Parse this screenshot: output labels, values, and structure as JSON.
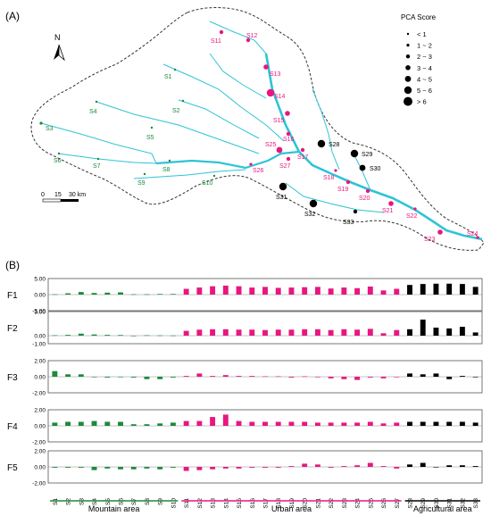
{
  "panel_a": {
    "label": "(A)",
    "north": "N",
    "scale_labels": [
      "0",
      "15",
      "30 km"
    ],
    "legend": {
      "title": "PCA Score",
      "items": [
        "< 1",
        "1 ~ 2",
        "2 ~ 3",
        "3 ~ 4",
        "4 ~ 5",
        "5 ~ 6",
        "> 6"
      ]
    },
    "colors": {
      "mountain": "#1a8a3c",
      "urban": "#e8177f",
      "agricultural": "#000000",
      "river": "#2ec4d6",
      "boundary": "#333333"
    },
    "sites": [
      {
        "id": "S1",
        "group": "mountain",
        "class": 1
      },
      {
        "id": "S2",
        "group": "mountain",
        "class": 1
      },
      {
        "id": "S3",
        "group": "mountain",
        "class": 2
      },
      {
        "id": "S4",
        "group": "mountain",
        "class": 1
      },
      {
        "id": "S5",
        "group": "mountain",
        "class": 1
      },
      {
        "id": "S6",
        "group": "mountain",
        "class": 1
      },
      {
        "id": "S7",
        "group": "mountain",
        "class": 1
      },
      {
        "id": "S8",
        "group": "mountain",
        "class": 1
      },
      {
        "id": "S9",
        "group": "mountain",
        "class": 1
      },
      {
        "id": "S10",
        "group": "mountain",
        "class": 1
      },
      {
        "id": "S11",
        "group": "urban",
        "class": 3
      },
      {
        "id": "S12",
        "group": "urban",
        "class": 3
      },
      {
        "id": "S13",
        "group": "urban",
        "class": 4
      },
      {
        "id": "S14",
        "group": "urban",
        "class": 6
      },
      {
        "id": "S15",
        "group": "urban",
        "class": 4
      },
      {
        "id": "S16",
        "group": "urban",
        "class": 3
      },
      {
        "id": "S17",
        "group": "urban",
        "class": 3
      },
      {
        "id": "S18",
        "group": "urban",
        "class": 2
      },
      {
        "id": "S19",
        "group": "urban",
        "class": 3
      },
      {
        "id": "S20",
        "group": "urban",
        "class": 3
      },
      {
        "id": "S21",
        "group": "urban",
        "class": 4
      },
      {
        "id": "S22",
        "group": "urban",
        "class": 2
      },
      {
        "id": "S23",
        "group": "urban",
        "class": 4
      },
      {
        "id": "S24",
        "group": "urban",
        "class": 2
      },
      {
        "id": "S25",
        "group": "urban",
        "class": 5
      },
      {
        "id": "S26",
        "group": "urban",
        "class": 2
      },
      {
        "id": "S27",
        "group": "urban",
        "class": 3
      },
      {
        "id": "S28",
        "group": "agricultural",
        "class": 6
      },
      {
        "id": "S29",
        "group": "agricultural",
        "class": 6
      },
      {
        "id": "S30",
        "group": "agricultural",
        "class": 5
      },
      {
        "id": "S31",
        "group": "agricultural",
        "class": 6
      },
      {
        "id": "S32",
        "group": "agricultural",
        "class": 6
      },
      {
        "id": "S33",
        "group": "agricultural",
        "class": 3
      }
    ]
  },
  "panel_b": {
    "label": "(B)",
    "chart_data": {
      "type": "bar",
      "categories": [
        "S1",
        "S2",
        "S3",
        "S4",
        "S5",
        "S6",
        "S7",
        "S8",
        "S9",
        "S10",
        "S11",
        "S12",
        "S13",
        "S14",
        "S15",
        "S16",
        "S17",
        "S18",
        "S19",
        "S20",
        "S21",
        "S22",
        "S23",
        "S24",
        "S25",
        "S26",
        "S27",
        "S28",
        "S29",
        "S30",
        "S31",
        "S32",
        "S33"
      ],
      "groups": [
        {
          "name": "Mountain area",
          "color": "#1a8a3c",
          "from": 0,
          "to": 9
        },
        {
          "name": "Urban area",
          "color": "#e8177f",
          "from": 10,
          "to": 26
        },
        {
          "name": "Agricultural area",
          "color": "#000000",
          "from": 27,
          "to": 32
        }
      ],
      "panels": [
        {
          "name": "F1",
          "ylim": [
            -5,
            5
          ],
          "ticks": [
            "5.00",
            "0.00",
            "-5.00"
          ],
          "values": [
            0.1,
            0.4,
            0.8,
            0.5,
            0.6,
            0.7,
            0.1,
            0.1,
            0.2,
            0.2,
            1.8,
            2.2,
            2.6,
            2.8,
            2.6,
            2.2,
            2.4,
            2.1,
            2.2,
            2.3,
            2.4,
            1.9,
            2.2,
            2.0,
            2.5,
            1.3,
            1.8,
            3.0,
            3.3,
            3.4,
            3.4,
            3.3,
            2.4
          ]
        },
        {
          "name": "F2",
          "ylim": [
            -1,
            3
          ],
          "ticks": [
            "3.00",
            "0.00",
            "-1.00"
          ],
          "values": [
            0.05,
            0.1,
            0.25,
            0.15,
            0.1,
            0.08,
            -0.05,
            0.05,
            0.03,
            0.02,
            0.6,
            0.75,
            0.8,
            0.8,
            0.75,
            0.75,
            0.7,
            0.75,
            0.75,
            0.8,
            0.8,
            0.7,
            0.8,
            0.75,
            0.85,
            0.3,
            0.7,
            0.8,
            2.0,
            1.0,
            0.9,
            1.1,
            0.4
          ]
        },
        {
          "name": "F3",
          "ylim": [
            -2,
            2
          ],
          "ticks": [
            "2.00",
            "0.00",
            "-2.00"
          ],
          "values": [
            0.7,
            0.3,
            0.3,
            0.0,
            -0.1,
            0.0,
            -0.1,
            -0.3,
            -0.3,
            -0.1,
            0.1,
            0.4,
            0.1,
            0.2,
            0.1,
            0.1,
            0.05,
            0.05,
            -0.1,
            0.05,
            0.0,
            -0.2,
            -0.3,
            -0.4,
            -0.1,
            -0.2,
            0.0,
            0.4,
            0.3,
            0.4,
            -0.3,
            0.1,
            -0.05
          ]
        },
        {
          "name": "F4",
          "ylim": [
            -2,
            2
          ],
          "ticks": [
            "2.00",
            "0.00",
            "-2.00"
          ],
          "values": [
            0.4,
            0.5,
            0.5,
            0.6,
            0.5,
            0.5,
            0.2,
            0.2,
            0.3,
            0.4,
            0.6,
            0.6,
            1.1,
            1.4,
            0.6,
            0.5,
            0.5,
            0.5,
            0.5,
            0.5,
            0.4,
            0.4,
            0.4,
            0.4,
            0.5,
            0.3,
            0.4,
            0.5,
            0.5,
            0.5,
            0.5,
            0.5,
            0.4
          ]
        },
        {
          "name": "F5",
          "ylim": [
            -2,
            2
          ],
          "ticks": [
            "2.00",
            "0.00",
            "-2.00"
          ],
          "values": [
            -0.1,
            -0.1,
            -0.1,
            -0.4,
            -0.2,
            -0.3,
            -0.3,
            -0.2,
            -0.3,
            -0.1,
            -0.5,
            -0.4,
            -0.3,
            -0.2,
            -0.2,
            -0.1,
            -0.1,
            -0.1,
            0.1,
            0.4,
            0.3,
            -0.1,
            0.1,
            0.2,
            0.5,
            0.1,
            -0.2,
            0.3,
            0.5,
            0.0,
            0.2,
            0.2,
            0.1
          ]
        }
      ]
    }
  }
}
